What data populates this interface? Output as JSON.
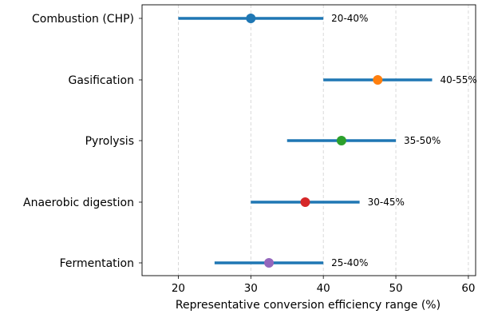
{
  "chart_data": {
    "type": "range",
    "title": "",
    "xlabel": "Representative conversion efficiency range (%)",
    "ylabel": "",
    "xlim": [
      15,
      61
    ],
    "xticks": [
      20,
      30,
      40,
      50,
      60
    ],
    "grid": "x-dashed",
    "categories": [
      "Combustion (CHP)",
      "Gasification",
      "Pyrolysis",
      "Anaerobic digestion",
      "Fermentation"
    ],
    "ranges": [
      {
        "category": "Combustion (CHP)",
        "low": 20,
        "high": 40,
        "mid": 30,
        "label": "20-40%",
        "color": "#1f77b4"
      },
      {
        "category": "Gasification",
        "low": 40,
        "high": 55,
        "mid": 47.5,
        "label": "40-55%",
        "color": "#ff7f0e"
      },
      {
        "category": "Pyrolysis",
        "low": 35,
        "high": 50,
        "mid": 42.5,
        "label": "35-50%",
        "color": "#2ca02c"
      },
      {
        "category": "Anaerobic digestion",
        "low": 30,
        "high": 45,
        "mid": 37.5,
        "label": "30-45%",
        "color": "#d62728"
      },
      {
        "category": "Fermentation",
        "low": 25,
        "high": 40,
        "mid": 32.5,
        "label": "25-40%",
        "color": "#9467bd"
      }
    ],
    "range_bar_color": "#1f77b4"
  }
}
